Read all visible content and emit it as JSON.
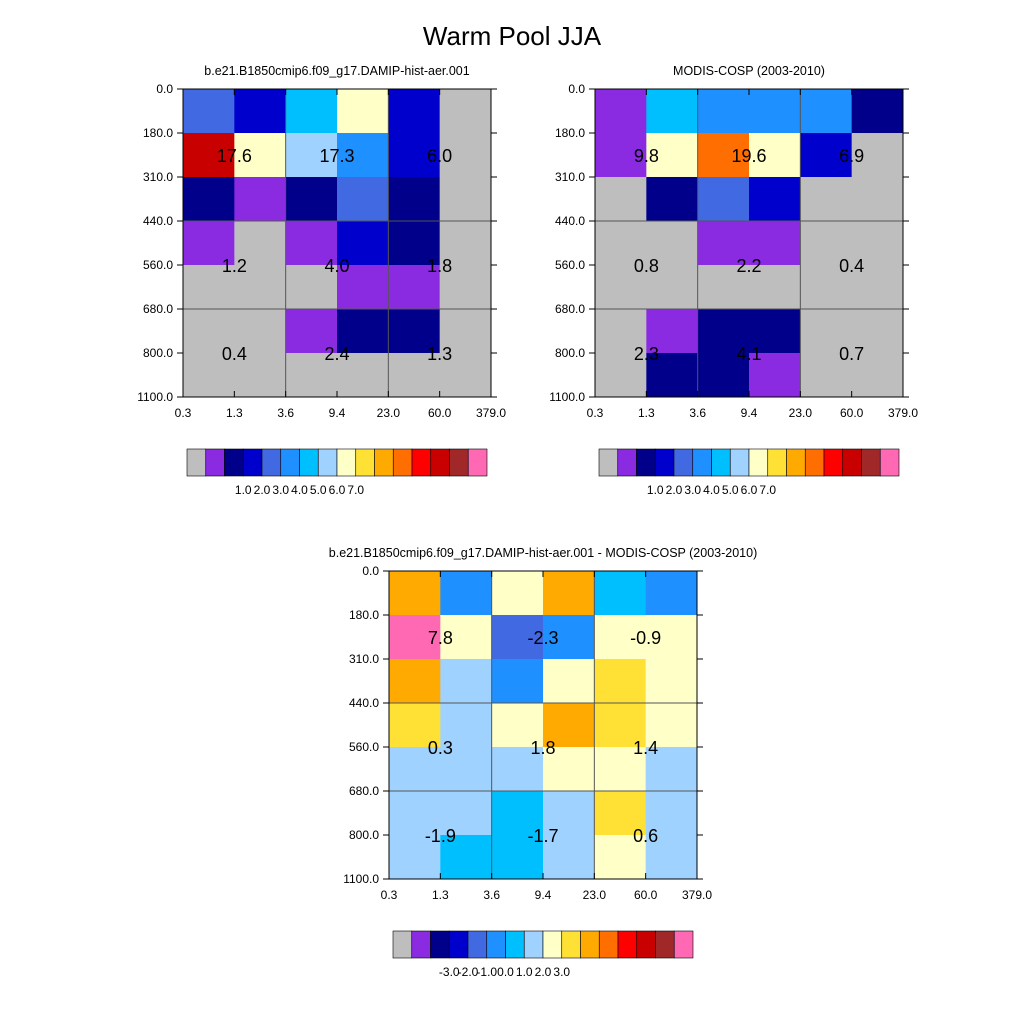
{
  "title": "Warm Pool JJA",
  "colors": {
    "missing": "#bebebe",
    "abs_palette": [
      "#bebebe",
      "#8a2be2",
      "#00008b",
      "#0000cd",
      "#4169e1",
      "#1e90ff",
      "#00bfff",
      "#a0d2ff",
      "#ffffc8",
      "#ffe135",
      "#ffaa00",
      "#ff6e00",
      "#ff0000",
      "#c80000",
      "#a02828",
      "#ff69b4"
    ],
    "diff_palette": [
      "#bebebe",
      "#8a2be2",
      "#00008b",
      "#0000cd",
      "#4169e1",
      "#1e90ff",
      "#00bfff",
      "#a0d2ff",
      "#ffffc8",
      "#ffe135",
      "#ffaa00",
      "#ff6e00",
      "#ff0000",
      "#c80000",
      "#a02828",
      "#ff69b4"
    ]
  },
  "chart_data": [
    {
      "type": "heatmap",
      "title": "b.e21.B1850cmip6.f09_g17.DAMIP-hist-aer.001",
      "x_edges": [
        "0.3",
        "1.3",
        "3.6",
        "9.4",
        "23.0",
        "60.0",
        "379.0"
      ],
      "y_edges": [
        "0.0",
        "180.0",
        "310.0",
        "440.0",
        "560.0",
        "680.0",
        "800.0",
        "1100.0"
      ],
      "cells": [
        [
          4,
          3,
          6,
          8,
          3,
          0
        ],
        [
          13,
          8,
          7,
          5,
          3,
          0
        ],
        [
          2,
          1,
          2,
          4,
          2,
          0
        ],
        [
          1,
          0,
          1,
          3,
          2,
          0
        ],
        [
          0,
          0,
          0,
          1,
          1,
          0
        ],
        [
          0,
          0,
          1,
          2,
          2,
          0
        ],
        [
          0,
          0,
          0,
          0,
          0,
          0
        ]
      ],
      "group_totals": [
        [
          "17.6",
          "17.3",
          "6.0"
        ],
        [
          "1.2",
          "4.0",
          "1.8"
        ],
        [
          "0.4",
          "2.4",
          "1.3"
        ]
      ],
      "colorbar_labels": [
        "1.0",
        "2.0",
        "3.0",
        "4.0",
        "5.0",
        "6.0",
        "7.0"
      ]
    },
    {
      "type": "heatmap",
      "title": "MODIS-COSP (2003-2010)",
      "x_edges": [
        "0.3",
        "1.3",
        "3.6",
        "9.4",
        "23.0",
        "60.0",
        "379.0"
      ],
      "y_edges": [
        "0.0",
        "180.0",
        "310.0",
        "440.0",
        "560.0",
        "680.0",
        "800.0",
        "1100.0"
      ],
      "cells": [
        [
          1,
          6,
          5,
          5,
          5,
          2
        ],
        [
          1,
          8,
          11,
          8,
          3,
          0
        ],
        [
          0,
          2,
          4,
          3,
          0,
          0
        ],
        [
          0,
          0,
          1,
          1,
          0,
          0
        ],
        [
          0,
          0,
          0,
          0,
          0,
          0
        ],
        [
          0,
          1,
          2,
          2,
          0,
          0
        ],
        [
          0,
          2,
          2,
          1,
          0,
          0
        ]
      ],
      "group_totals": [
        [
          "9.8",
          "19.6",
          "6.9"
        ],
        [
          "0.8",
          "2.2",
          "0.4"
        ],
        [
          "2.3",
          "4.1",
          "0.7"
        ]
      ],
      "colorbar_labels": [
        "1.0",
        "2.0",
        "3.0",
        "4.0",
        "5.0",
        "6.0",
        "7.0"
      ]
    },
    {
      "type": "heatmap",
      "title": "b.e21.B1850cmip6.f09_g17.DAMIP-hist-aer.001 - MODIS-COSP (2003-2010)",
      "x_edges": [
        "0.3",
        "1.3",
        "3.6",
        "9.4",
        "23.0",
        "60.0",
        "379.0"
      ],
      "y_edges": [
        "0.0",
        "180.0",
        "310.0",
        "440.0",
        "560.0",
        "680.0",
        "800.0",
        "1100.0"
      ],
      "cells": [
        [
          10,
          5,
          8,
          10,
          6,
          5
        ],
        [
          15,
          8,
          4,
          5,
          8,
          8
        ],
        [
          10,
          7,
          5,
          8,
          9,
          8
        ],
        [
          9,
          7,
          8,
          10,
          9,
          8
        ],
        [
          7,
          7,
          7,
          8,
          8,
          7
        ],
        [
          7,
          7,
          6,
          7,
          9,
          7
        ],
        [
          7,
          6,
          6,
          7,
          8,
          7
        ]
      ],
      "group_totals": [
        [
          "7.8",
          "-2.3",
          "-0.9"
        ],
        [
          "0.3",
          "1.8",
          "1.4"
        ],
        [
          "-1.9",
          "-1.7",
          "0.6"
        ]
      ],
      "colorbar_labels": [
        "-3.0",
        "-2.0",
        "-1.0",
        "0.0",
        "1.0",
        "2.0",
        "3.0"
      ]
    }
  ]
}
